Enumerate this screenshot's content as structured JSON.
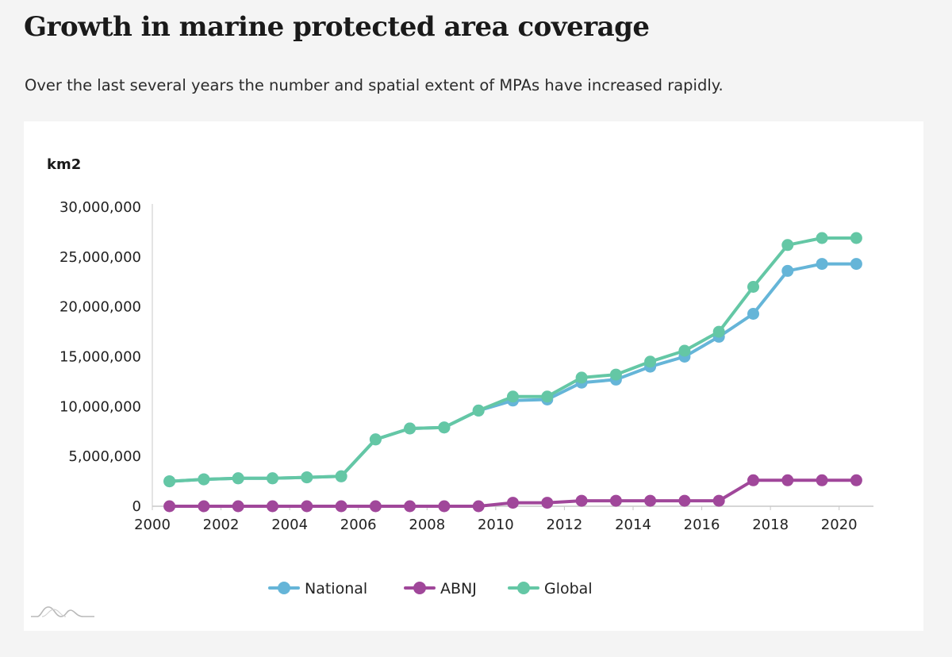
{
  "header": {
    "title": "Growth in marine protected area coverage",
    "subtitle": "Over the last several years the number and spatial extent of MPAs have increased rapidly."
  },
  "chart_data": {
    "type": "line",
    "title": "Growth in marine protected area coverage",
    "ylabel": "km2",
    "xlabel": "",
    "x_ticks": [
      "2000",
      "2002",
      "2004",
      "2006",
      "2008",
      "2010",
      "2012",
      "2014",
      "2016",
      "2018",
      "2020"
    ],
    "y_ticks": [
      "0",
      "5,000,000",
      "10,000,000",
      "15,000,000",
      "20,000,000",
      "25,000,000",
      "30,000,000"
    ],
    "xlim": [
      2000,
      2021
    ],
    "ylim": [
      0,
      30000000
    ],
    "x": [
      2000.5,
      2001.5,
      2002.5,
      2003.5,
      2004.5,
      2005.5,
      2006.5,
      2007.5,
      2008.5,
      2009.5,
      2010.5,
      2011.5,
      2012.5,
      2013.5,
      2014.5,
      2015.5,
      2016.5,
      2017.5,
      2018.5,
      2019.5,
      2020.5
    ],
    "series": [
      {
        "name": "National",
        "color": "#65b5d8",
        "values": [
          2500000,
          2700000,
          2800000,
          2800000,
          2900000,
          3000000,
          6700000,
          7800000,
          7900000,
          9600000,
          10600000,
          10700000,
          12400000,
          12700000,
          14000000,
          15000000,
          17000000,
          19300000,
          23600000,
          24300000,
          24300000
        ]
      },
      {
        "name": "ABNJ",
        "color": "#a0479a",
        "values": [
          0,
          0,
          0,
          0,
          0,
          0,
          0,
          0,
          0,
          0,
          350000,
          350000,
          550000,
          550000,
          550000,
          550000,
          550000,
          2600000,
          2600000,
          2600000,
          2600000
        ]
      },
      {
        "name": "Global",
        "color": "#64c7a5",
        "values": [
          2500000,
          2700000,
          2800000,
          2800000,
          2900000,
          3000000,
          6700000,
          7800000,
          7900000,
          9600000,
          11000000,
          11000000,
          12900000,
          13200000,
          14500000,
          15600000,
          17500000,
          22000000,
          26200000,
          26900000,
          26900000
        ]
      }
    ],
    "legend": [
      "National",
      "ABNJ",
      "Global"
    ],
    "legend_position": "bottom-center",
    "grid": false
  }
}
